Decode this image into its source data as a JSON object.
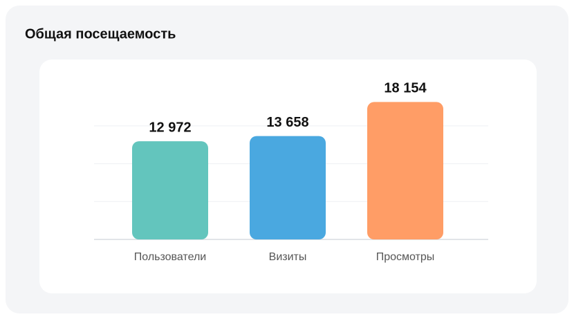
{
  "chart_data": {
    "type": "bar",
    "title": "Общая посещаемость",
    "categories": [
      "Пользователи",
      "Визиты",
      "Просмотры"
    ],
    "values": [
      12972,
      13658,
      18154
    ],
    "value_labels": [
      "12 972",
      "13 658",
      "18 154"
    ],
    "colors": [
      "#63c5bd",
      "#4aa8e0",
      "#ff9d66"
    ],
    "ylim": [
      0,
      20000
    ],
    "yticks": [
      0,
      5000,
      10000,
      15000
    ],
    "grid": true
  }
}
